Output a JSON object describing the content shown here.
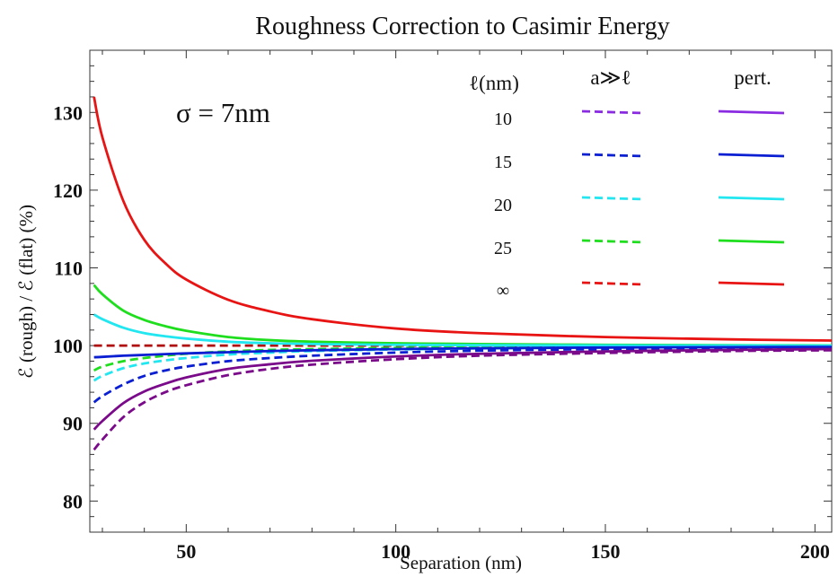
{
  "chart_data": {
    "type": "line",
    "title": "Roughness Correction to Casimir Energy",
    "xlabel": "Separation (nm)",
    "ylabel": "ℰ (rough) / ℰ (flat)     (%)",
    "xlim": [
      27,
      204
    ],
    "ylim": [
      76,
      138
    ],
    "xticks": [
      50,
      100,
      150,
      200
    ],
    "yticks": [
      80,
      90,
      100,
      110,
      120,
      130
    ],
    "grid": false,
    "annotation": "σ = 7nm",
    "legend": {
      "placement": "top-right",
      "col_header_l": "ℓ(nm)",
      "col_header_dashed": "a≫ℓ",
      "col_header_solid": "pert.",
      "rows": [
        {
          "label": "10",
          "color": "#8a2be2"
        },
        {
          "label": "15",
          "color": "#0a1ed2"
        },
        {
          "label": "20",
          "color": "#22e6f0"
        },
        {
          "label": "25",
          "color": "#1ede1e"
        },
        {
          "label": "∞",
          "color": "#e81414"
        }
      ]
    },
    "x": [
      28,
      30,
      35,
      40,
      45,
      50,
      60,
      70,
      80,
      100,
      120,
      150,
      180,
      204
    ],
    "series": [
      {
        "key": "inf-pert",
        "color": "#e81414",
        "style": "solid",
        "values": [
          132,
          126.8,
          118.6,
          113.6,
          110.6,
          108.5,
          105.9,
          104.4,
          103.4,
          102.2,
          101.6,
          101.1,
          100.8,
          100.65
        ]
      },
      {
        "key": "inf-dashed",
        "color": "#b00a0a",
        "style": "dashed",
        "values": [
          100,
          100,
          100,
          100,
          100,
          100,
          100,
          100,
          100,
          100,
          100,
          100,
          100,
          100
        ]
      },
      {
        "key": "25-pert",
        "color": "#1ede1e",
        "style": "solid",
        "values": [
          107.8,
          106.6,
          104.5,
          103.3,
          102.5,
          101.9,
          101.1,
          100.7,
          100.5,
          100.3,
          100.2,
          100.1,
          100.05,
          100.03
        ]
      },
      {
        "key": "25-dashed",
        "color": "#1ede1e",
        "style": "dashed",
        "values": [
          96.8,
          97.3,
          98.0,
          98.4,
          98.7,
          98.95,
          99.25,
          99.45,
          99.55,
          99.7,
          99.8,
          99.85,
          99.9,
          99.92
        ]
      },
      {
        "key": "20-pert",
        "color": "#22e6f0",
        "style": "solid",
        "values": [
          104,
          103.4,
          102.3,
          101.6,
          101.2,
          100.9,
          100.5,
          100.3,
          100.2,
          100.1,
          100.05,
          100.02,
          100.01,
          100.0
        ]
      },
      {
        "key": "20-dashed",
        "color": "#22e6f0",
        "style": "dashed",
        "values": [
          95.5,
          96.1,
          97.1,
          97.7,
          98.1,
          98.4,
          98.85,
          99.1,
          99.3,
          99.5,
          99.65,
          99.75,
          99.8,
          99.83
        ]
      },
      {
        "key": "15-pert",
        "color": "#0a1ed2",
        "style": "solid",
        "values": [
          98.5,
          98.55,
          98.7,
          98.8,
          98.9,
          99.0,
          99.15,
          99.3,
          99.4,
          99.55,
          99.65,
          99.75,
          99.8,
          99.83
        ]
      },
      {
        "key": "15-dashed",
        "color": "#0a1ed2",
        "style": "dashed",
        "values": [
          92.7,
          93.5,
          95.0,
          96.1,
          96.8,
          97.3,
          98.0,
          98.4,
          98.7,
          99.1,
          99.35,
          99.55,
          99.65,
          99.7
        ]
      },
      {
        "key": "10-pert",
        "color": "#7a0a8a",
        "style": "solid",
        "values": [
          89.2,
          90.3,
          92.6,
          94.1,
          95.1,
          95.9,
          97.0,
          97.6,
          98.05,
          98.6,
          98.95,
          99.25,
          99.45,
          99.55
        ]
      },
      {
        "key": "10-dashed",
        "color": "#7a0a8a",
        "style": "dashed",
        "values": [
          86.6,
          87.9,
          90.8,
          92.7,
          94.0,
          94.9,
          96.2,
          97.0,
          97.55,
          98.25,
          98.7,
          99.05,
          99.3,
          99.4
        ]
      }
    ]
  }
}
